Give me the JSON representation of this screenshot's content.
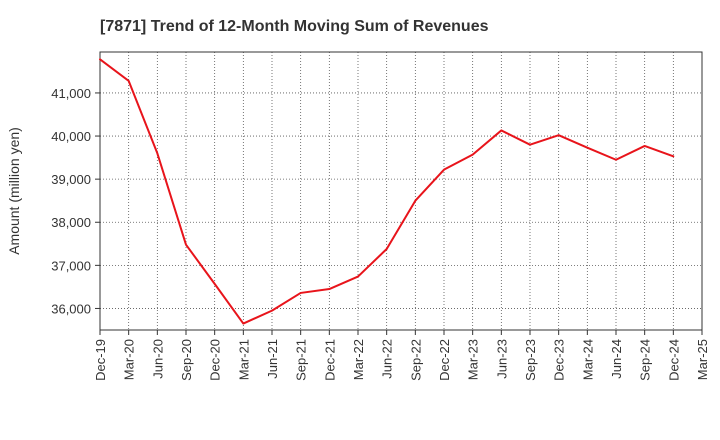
{
  "chart_data": {
    "type": "line",
    "title": "[7871]  Trend of 12-Month Moving Sum of Revenues",
    "xlabel": "",
    "ylabel": "Amount (million yen)",
    "x_ticks": [
      "Dec-19",
      "Mar-20",
      "Jun-20",
      "Sep-20",
      "Dec-20",
      "Mar-21",
      "Jun-21",
      "Sep-21",
      "Dec-21",
      "Mar-22",
      "Jun-22",
      "Sep-22",
      "Dec-22",
      "Mar-23",
      "Jun-23",
      "Sep-23",
      "Dec-23",
      "Mar-24",
      "Jun-24",
      "Sep-24",
      "Dec-24",
      "Mar-25"
    ],
    "y_ticks": [
      36000,
      37000,
      38000,
      39000,
      40000,
      41000
    ],
    "y_tick_labels": [
      "36,000",
      "37,000",
      "38,000",
      "39,000",
      "40,000",
      "41,000"
    ],
    "ylim": [
      35500,
      41950
    ],
    "grid": true,
    "series": [
      {
        "color": "#e8141b",
        "x": [
          "Dec-19",
          "Mar-20",
          "Jun-20",
          "Sep-20",
          "Dec-20",
          "Mar-21",
          "Jun-21",
          "Sep-21",
          "Dec-21",
          "Mar-22",
          "Jun-22",
          "Sep-22",
          "Dec-22",
          "Mar-23",
          "Jun-23",
          "Sep-23",
          "Dec-23",
          "Mar-24",
          "Jun-24",
          "Sep-24",
          "Dec-24"
        ],
        "values": [
          41780,
          41280,
          39600,
          37480,
          36570,
          35650,
          35950,
          36360,
          36450,
          36740,
          37380,
          38500,
          39220,
          39570,
          40130,
          39800,
          40020,
          39730,
          39450,
          39770,
          39530
        ]
      }
    ]
  }
}
